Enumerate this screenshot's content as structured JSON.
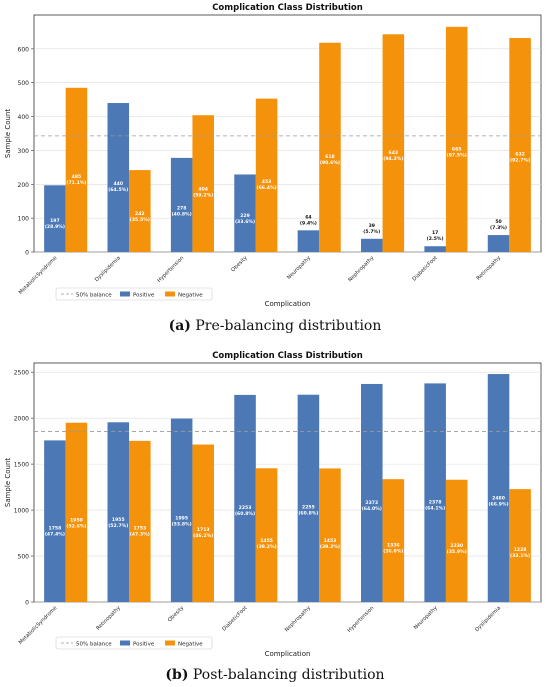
{
  "chart_data": [
    {
      "type": "bar",
      "title": "Complication Class Distribution",
      "xlabel": "Complication",
      "ylabel": "Sample Count",
      "ylim": [
        0,
        700
      ],
      "yticks": [
        0,
        100,
        200,
        300,
        400,
        500,
        600
      ],
      "balance_line": 343,
      "balance_label": "50% balance",
      "legend": {
        "placement": "bottom-left",
        "entries": [
          "50% balance",
          "Positive",
          "Negative"
        ]
      },
      "grid": "horizontal",
      "categories": [
        "MetabolicSyndrome",
        "Dyslipidemia",
        "Hypertension",
        "Obesity",
        "Neuropathy",
        "Nephropathy",
        "DiabeticFoot",
        "Retinopathy"
      ],
      "series": [
        {
          "name": "Positive",
          "color": "#4c78b5",
          "values": [
            197,
            440,
            278,
            229,
            64,
            39,
            17,
            50
          ],
          "labels": [
            "197\n(28.9%)",
            "440\n(64.5%)",
            "278\n(40.8%)",
            "229\n(33.6%)",
            "64\n(9.4%)",
            "39\n(5.7%)",
            "17\n(2.5%)",
            "50\n(7.3%)"
          ]
        },
        {
          "name": "Negative",
          "color": "#f5920c",
          "values": [
            485,
            242,
            404,
            453,
            618,
            643,
            665,
            632
          ],
          "labels": [
            "485\n(71.1%)",
            "242\n(35.5%)",
            "404\n(59.2%)",
            "453\n(66.4%)",
            "618\n(90.6%)",
            "643\n(94.3%)",
            "665\n(97.5%)",
            "632\n(92.7%)"
          ]
        }
      ]
    },
    {
      "type": "bar",
      "title": "Complication Class Distribution",
      "xlabel": "Complication",
      "ylabel": "Sample Count",
      "ylim": [
        0,
        2600
      ],
      "yticks": [
        0,
        500,
        1000,
        1500,
        2000,
        2500
      ],
      "balance_line": 1854,
      "balance_label": "50% balance",
      "legend": {
        "placement": "bottom-left",
        "entries": [
          "50% balance",
          "Positive",
          "Negative"
        ]
      },
      "grid": "horizontal",
      "categories": [
        "MetabolicSyndrome",
        "Retinopathy",
        "Obesity",
        "DiabeticFoot",
        "Nephropathy",
        "Hypertension",
        "Neuropathy",
        "Dyslipidemia"
      ],
      "series": [
        {
          "name": "Positive",
          "color": "#4c78b5",
          "values": [
            1758,
            1955,
            1995,
            2253,
            2255,
            2372,
            2378,
            2480
          ],
          "labels": [
            "1758\n(47.4%)",
            "1955\n(52.7%)",
            "1995\n(53.8%)",
            "2253\n(60.8%)",
            "2255\n(60.8%)",
            "2372\n(64.0%)",
            "2378\n(64.1%)",
            "2480\n(66.9%)"
          ]
        },
        {
          "name": "Negative",
          "color": "#f5920c",
          "values": [
            1950,
            1753,
            1713,
            1455,
            1453,
            1336,
            1330,
            1228
          ],
          "labels": [
            "1950\n(52.6%)",
            "1753\n(47.3%)",
            "1713\n(46.2%)",
            "1455\n(39.2%)",
            "1453\n(39.2%)",
            "1336\n(36.0%)",
            "1330\n(35.9%)",
            "1228\n(33.1%)"
          ]
        }
      ]
    }
  ],
  "captions": [
    {
      "tag": "(a)",
      "text": "Pre-balancing distribution"
    },
    {
      "tag": "(b)",
      "text": "Post-balancing distribution"
    }
  ]
}
